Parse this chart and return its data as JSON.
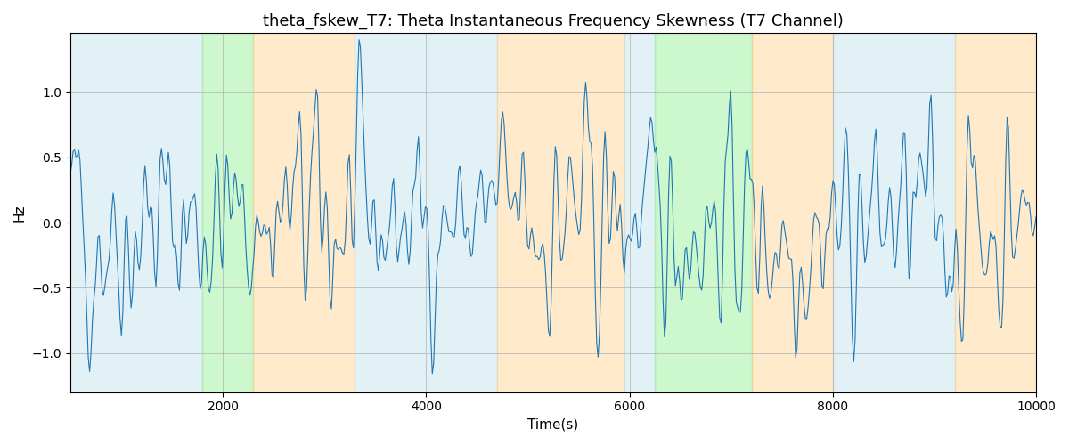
{
  "title": "theta_fskew_T7: Theta Instantaneous Frequency Skewness (T7 Channel)",
  "xlabel": "Time(s)",
  "ylabel": "Hz",
  "xlim": [
    500,
    10000
  ],
  "ylim": [
    -1.3,
    1.45
  ],
  "yticks": [
    -1.0,
    -0.5,
    0.0,
    0.5,
    1.0
  ],
  "line_color": "#1f77b4",
  "line_width": 0.8,
  "bg_color": "#ffffff",
  "grid_color": "#b0b0b0",
  "title_fontsize": 13,
  "label_fontsize": 11,
  "figsize": [
    12,
    5
  ],
  "dpi": 100,
  "regions": [
    {
      "xmin": 500,
      "xmax": 1800,
      "color": "#add8e6",
      "alpha": 0.35
    },
    {
      "xmin": 1800,
      "xmax": 2300,
      "color": "#90ee90",
      "alpha": 0.45
    },
    {
      "xmin": 2300,
      "xmax": 3300,
      "color": "#ffc87a",
      "alpha": 0.38
    },
    {
      "xmin": 3300,
      "xmax": 4700,
      "color": "#add8e6",
      "alpha": 0.35
    },
    {
      "xmin": 4700,
      "xmax": 5950,
      "color": "#ffc87a",
      "alpha": 0.38
    },
    {
      "xmin": 5950,
      "xmax": 6250,
      "color": "#add8e6",
      "alpha": 0.35
    },
    {
      "xmin": 6250,
      "xmax": 7200,
      "color": "#90ee90",
      "alpha": 0.45
    },
    {
      "xmin": 7200,
      "xmax": 8000,
      "color": "#ffc87a",
      "alpha": 0.38
    },
    {
      "xmin": 8000,
      "xmax": 9200,
      "color": "#add8e6",
      "alpha": 0.35
    },
    {
      "xmin": 9200,
      "xmax": 10000,
      "color": "#ffc87a",
      "alpha": 0.38
    }
  ],
  "seed": 42,
  "n_points": 700,
  "x_start": 500,
  "x_end": 10000
}
